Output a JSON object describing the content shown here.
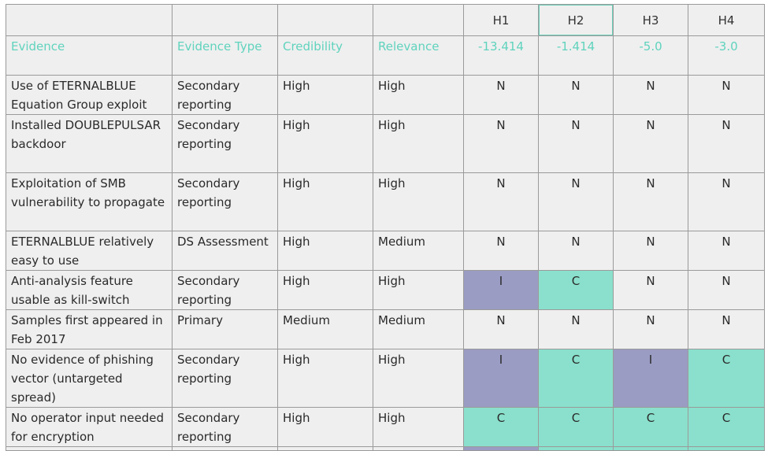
{
  "hypotheses": [
    "H1",
    "H2",
    "H3",
    "H4"
  ],
  "column_labels": {
    "evidence": "Evidence",
    "evidence_type": "Evidence Type",
    "credibility": "Credibility",
    "relevance": "Relevance"
  },
  "scores": [
    "-13.414",
    "-1.414",
    "-5.0",
    "-3.0"
  ],
  "rows": [
    {
      "evidence": "Use of ETERNALBLUE Equation Group exploit",
      "type": "Secondary reporting",
      "credibility": "High",
      "relevance": "High",
      "h": [
        "N",
        "N",
        "N",
        "N"
      ]
    },
    {
      "evidence": "Installed DOUBLEPULSAR backdoor",
      "type": "Secondary reporting",
      "credibility": "High",
      "relevance": "High",
      "h": [
        "N",
        "N",
        "N",
        "N"
      ]
    },
    {
      "evidence": "Exploitation of SMB vulnerability to propagate",
      "type": "Secondary reporting",
      "credibility": "High",
      "relevance": "High",
      "h": [
        "N",
        "N",
        "N",
        "N"
      ]
    },
    {
      "evidence": "ETERNALBLUE relatively easy to use",
      "type": "DS Assessment",
      "credibility": "High",
      "relevance": "Medium",
      "h": [
        "N",
        "N",
        "N",
        "N"
      ]
    },
    {
      "evidence": "Anti-analysis feature usable as kill-switch",
      "type": "Secondary reporting",
      "credibility": "High",
      "relevance": "High",
      "h": [
        "I",
        "C",
        "N",
        "N"
      ]
    },
    {
      "evidence": "Samples first appeared in Feb 2017",
      "type": "Primary",
      "credibility": "Medium",
      "relevance": "Medium",
      "h": [
        "N",
        "N",
        "N",
        "N"
      ]
    },
    {
      "evidence": "No evidence of phishing vector (untargeted spread)",
      "type": "Secondary reporting",
      "credibility": "High",
      "relevance": "High",
      "h": [
        "I",
        "C",
        "I",
        "C"
      ]
    },
    {
      "evidence": "No operator input needed for encryption",
      "type": "Secondary reporting",
      "credibility": "High",
      "relevance": "High",
      "h": [
        "C",
        "C",
        "C",
        "C"
      ]
    }
  ],
  "colors": {
    "inconsistent": "#9b9cc4",
    "consistent": "#8ae0cc",
    "accent": "#5fd3bd"
  }
}
